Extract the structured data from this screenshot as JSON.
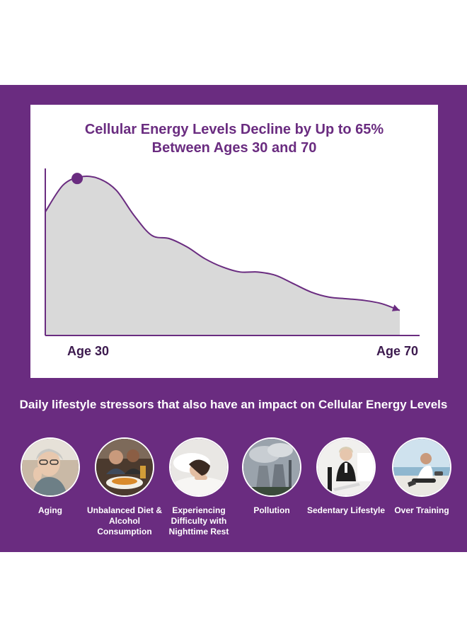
{
  "chart_data": {
    "type": "area",
    "title_line1": "Cellular Energy Levels Decline by Up to 65%",
    "title_line2": "Between Ages 30 and 70",
    "x_start_label": "Age 30",
    "x_end_label": "Age 70",
    "x": [
      0,
      5,
      10,
      15,
      20,
      25,
      30,
      35,
      40,
      45,
      50,
      55,
      60,
      65,
      70,
      75,
      80,
      85,
      90,
      95,
      100
    ],
    "y": [
      74,
      90,
      95,
      94,
      87,
      72,
      60,
      58,
      53,
      46,
      41,
      38,
      38,
      36,
      31,
      26,
      23,
      22,
      21,
      19,
      15
    ],
    "peak_marker_x": 9,
    "xlim": [
      0,
      100
    ],
    "ylim": [
      0,
      100
    ],
    "grid": false,
    "series_color": "#6a2c80",
    "fill_color": "#d9d9d9"
  },
  "stressors_heading": "Daily lifestyle stressors that also have an impact on Cellular Energy Levels",
  "stressors": [
    {
      "label": "Aging",
      "icon": "aging-photo"
    },
    {
      "label": "Unbalanced Diet & Alcohol Consumption",
      "icon": "diet-photo"
    },
    {
      "label": "Experiencing Difficulty with Nighttime Rest",
      "icon": "sleep-photo"
    },
    {
      "label": "Pollution",
      "icon": "pollution-photo"
    },
    {
      "label": "Sedentary Lifestyle",
      "icon": "sedentary-photo"
    },
    {
      "label": "Over Training",
      "icon": "training-photo"
    }
  ],
  "colors": {
    "brand_purple": "#6a2c80",
    "white": "#ffffff"
  }
}
